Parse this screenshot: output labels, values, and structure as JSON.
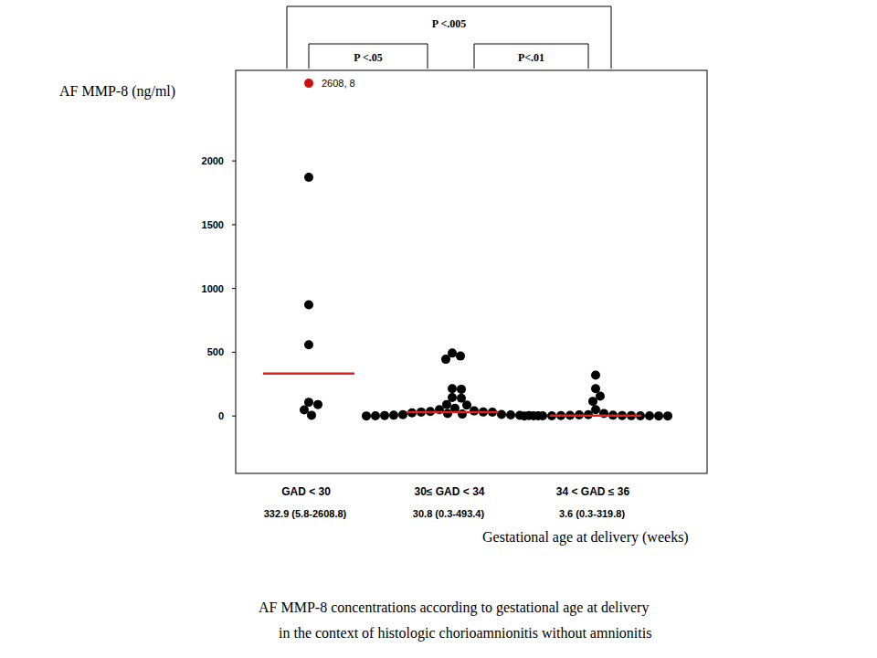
{
  "chart_data": {
    "type": "strip",
    "title": "AF MMP-8 concentrations according to gestational age at delivery",
    "subtitle": "in the context of histologic chorioamnionitis without amnionitis",
    "y_label": "AF MMP-8 (ng/ml)",
    "x_label": "Gestational age at delivery (weeks)",
    "categories": [
      "GAD < 30",
      "30≤ GAD < 34",
      "34 < GAD ≤ 36"
    ],
    "summaries": [
      "332.9 (5.8-2608.8)",
      "30.8 (0.3-493.4)",
      "3.6 (0.3-319.8)"
    ],
    "series": [
      {
        "type": "scatter",
        "color": "#000000",
        "values": [
          [
            1871,
            872,
            558,
            107.8,
            90,
            48,
            5.8
          ],
          [
            493.4,
            470,
            445,
            215,
            210,
            145,
            140,
            90,
            85,
            60,
            50,
            40,
            35,
            31,
            30.8,
            30,
            25,
            20,
            15,
            12,
            10,
            8,
            6,
            5,
            4,
            3,
            2,
            1,
            0.3
          ],
          [
            319.8,
            215,
            155,
            115,
            50,
            20,
            10,
            8,
            6,
            5,
            3.6,
            3,
            2.5,
            2,
            1.5,
            1.2,
            1,
            0.8,
            0.5,
            0.4,
            0.3
          ]
        ]
      },
      {
        "type": "median",
        "color": "#e0201b",
        "values": [
          332.9,
          30.8,
          3.6
        ]
      }
    ],
    "annotations": [
      {
        "text": "2608, 8",
        "category": 0,
        "value": 2608.8,
        "color": "#cc1010"
      }
    ],
    "comparisons": [
      {
        "from": 0,
        "to": 1,
        "text": "P <.05"
      },
      {
        "from": 1,
        "to": 2,
        "text": "P<.01"
      },
      {
        "from": 0,
        "to": 2,
        "text": "P <.005"
      }
    ],
    "ylim": [
      -450,
      2710
    ],
    "yticks": [
      0,
      500,
      1000,
      1500,
      2000
    ],
    "grid": false
  }
}
